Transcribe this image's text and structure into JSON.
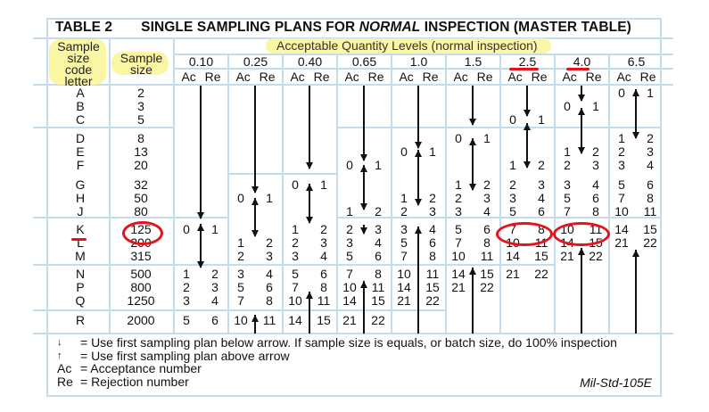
{
  "title": {
    "table_label": "TABLE 2",
    "text_before": "SINGLE SAMPLING PLANS FOR ",
    "text_italic": "NORMAL",
    "text_after": " INSPECTION (MASTER TABLE)"
  },
  "headers": {
    "code_letter": [
      "Sample",
      "size",
      "code",
      "letter"
    ],
    "sample_size": [
      "Sample",
      "size"
    ],
    "aql_group": "Acceptable Quantity Levels (normal inspection)",
    "aql_values": [
      "0.10",
      "0.25",
      "0.40",
      "0.65",
      "1.0",
      "1.5",
      "2.5",
      "4.0",
      "6.5"
    ],
    "ac_re": "Ac Re"
  },
  "rows": [
    {
      "letter": "A",
      "size": "2"
    },
    {
      "letter": "B",
      "size": "3"
    },
    {
      "letter": "C",
      "size": "5"
    },
    {
      "letter": "D",
      "size": "8"
    },
    {
      "letter": "E",
      "size": "13"
    },
    {
      "letter": "F",
      "size": "20"
    },
    {
      "letter": "G",
      "size": "32"
    },
    {
      "letter": "H",
      "size": "50"
    },
    {
      "letter": "J",
      "size": "80"
    },
    {
      "letter": "K",
      "size": "125"
    },
    {
      "letter": "L",
      "size": "200"
    },
    {
      "letter": "M",
      "size": "315"
    },
    {
      "letter": "N",
      "size": "500"
    },
    {
      "letter": "P",
      "size": "800"
    },
    {
      "letter": "Q",
      "size": "1250"
    },
    {
      "letter": "R",
      "size": "2000"
    }
  ],
  "plans": {
    "0.10": {
      "K": [
        "0",
        "1"
      ],
      "N": [
        "1",
        "2"
      ],
      "P": [
        "2",
        "3"
      ],
      "Q": [
        "3",
        "4"
      ],
      "R": [
        "5",
        "6"
      ]
    },
    "0.25": {
      "H": [
        "0",
        "1"
      ],
      "L": [
        "1",
        "2"
      ],
      "M": [
        "2",
        "3"
      ],
      "N": [
        "3",
        "4"
      ],
      "P": [
        "5",
        "6"
      ],
      "Q": [
        "7",
        "8"
      ],
      "R": [
        "10",
        "11"
      ]
    },
    "0.40": {
      "G": [
        "0",
        "1"
      ],
      "K": [
        "1",
        "2"
      ],
      "L": [
        "2",
        "3"
      ],
      "M": [
        "3",
        "4"
      ],
      "N": [
        "5",
        "6"
      ],
      "P": [
        "7",
        "8"
      ],
      "Q": [
        "10",
        "11"
      ],
      "R": [
        "14",
        "15"
      ]
    },
    "0.65": {
      "F": [
        "0",
        "1"
      ],
      "J": [
        "1",
        "2"
      ],
      "K": [
        "2",
        "3"
      ],
      "L": [
        "3",
        "4"
      ],
      "M": [
        "5",
        "6"
      ],
      "N": [
        "7",
        "8"
      ],
      "P": [
        "10",
        "11"
      ],
      "Q": [
        "14",
        "15"
      ],
      "R": [
        "21",
        "22"
      ]
    },
    "1.0": {
      "E": [
        "0",
        "1"
      ],
      "H": [
        "1",
        "2"
      ],
      "J": [
        "2",
        "3"
      ],
      "K": [
        "3",
        "4"
      ],
      "L": [
        "5",
        "6"
      ],
      "M": [
        "7",
        "8"
      ],
      "N": [
        "10",
        "11"
      ],
      "P": [
        "14",
        "15"
      ],
      "Q": [
        "21",
        "22"
      ]
    },
    "1.5": {
      "D": [
        "0",
        "1"
      ],
      "G": [
        "1",
        "2"
      ],
      "H": [
        "2",
        "3"
      ],
      "J": [
        "3",
        "4"
      ],
      "K": [
        "5",
        "6"
      ],
      "L": [
        "7",
        "8"
      ],
      "M": [
        "10",
        "11"
      ],
      "N": [
        "14",
        "15"
      ],
      "P": [
        "21",
        "22"
      ]
    },
    "2.5": {
      "C": [
        "0",
        "1"
      ],
      "F": [
        "1",
        "2"
      ],
      "G": [
        "2",
        "3"
      ],
      "H": [
        "3",
        "4"
      ],
      "J": [
        "5",
        "6"
      ],
      "K": [
        "7",
        "8"
      ],
      "L": [
        "10",
        "11"
      ],
      "M": [
        "14",
        "15"
      ],
      "N": [
        "21",
        "22"
      ]
    },
    "4.0": {
      "B": [
        "0",
        "1"
      ],
      "E": [
        "1",
        "2"
      ],
      "F": [
        "2",
        "3"
      ],
      "G": [
        "3",
        "4"
      ],
      "H": [
        "5",
        "6"
      ],
      "J": [
        "7",
        "8"
      ],
      "K": [
        "10",
        "11"
      ],
      "L": [
        "14",
        "15"
      ],
      "M": [
        "21",
        "22"
      ]
    },
    "6.5": {
      "A": [
        "0",
        "1"
      ],
      "D": [
        "1",
        "2"
      ],
      "E": [
        "2",
        "3"
      ],
      "F": [
        "3",
        "4"
      ],
      "G": [
        "5",
        "6"
      ],
      "H": [
        "7",
        "8"
      ],
      "J": [
        "10",
        "11"
      ],
      "K": [
        "14",
        "15"
      ],
      "L": [
        "21",
        "22"
      ]
    }
  },
  "annotations": {
    "highlighted_letter": "K",
    "highlighted_size": "125",
    "highlighted_aql": [
      "2.5",
      "4.0"
    ],
    "highlighted_values": [
      [
        "7",
        "8"
      ],
      [
        "10",
        "11"
      ]
    ],
    "highlight_color": "#fbf59a",
    "marker_color": "#e3121b"
  },
  "legend": {
    "down_arrow_symbol": "↓",
    "down_arrow_text": "= Use first sampling plan below arrow. If sample size is equals, or batch size, do 100% inspection",
    "up_arrow_symbol": "↑",
    "up_arrow_text": "= Use first sampling plan above arrow",
    "ac_symbol": "Ac",
    "ac_text": "= Acceptance number",
    "re_symbol": "Re",
    "re_text": "= Rejection number"
  },
  "source": "Mil-Std-105E",
  "colors": {
    "grid": "#c4dcec",
    "text": "#111111"
  }
}
